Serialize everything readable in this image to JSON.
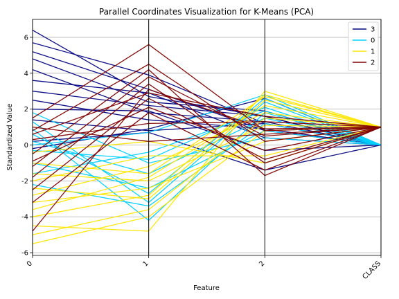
{
  "chart_data": {
    "type": "line",
    "title": "Parallel Coordinates Visualization for K-Means (PCA)",
    "xlabel": "Feature",
    "ylabel": "Standardized Value",
    "categories": [
      "0",
      "1",
      "2",
      "CLASS"
    ],
    "ylim": [
      -6.15,
      7.0
    ],
    "yticks": [
      -6,
      -4,
      -2,
      0,
      2,
      4,
      6
    ],
    "grid": "horizontal",
    "legend_position": "top-right",
    "series": [
      {
        "name": "3",
        "color": "#000080",
        "lines": [
          [
            6.4,
            2.7,
            1.6,
            0.0
          ],
          [
            5.7,
            3.9,
            1.2,
            0.0
          ],
          [
            5.2,
            3.1,
            0.8,
            0.0
          ],
          [
            4.8,
            2.4,
            1.9,
            0.0
          ],
          [
            4.2,
            1.8,
            1.3,
            0.0
          ],
          [
            3.6,
            2.9,
            0.4,
            0.0
          ],
          [
            3.0,
            2.2,
            1.6,
            0.0
          ],
          [
            2.5,
            1.4,
            0.9,
            0.0
          ],
          [
            2.0,
            1.9,
            -0.3,
            0.0
          ],
          [
            1.4,
            0.8,
            1.2,
            0.0
          ],
          [
            0.2,
            0.7,
            -1.4,
            0.0
          ],
          [
            -0.2,
            0.9,
            2.6,
            0.0
          ]
        ]
      },
      {
        "name": "0",
        "color": "#00d0ff",
        "lines": [
          [
            1.3,
            -3.2,
            2.4,
            0.0
          ],
          [
            0.9,
            -4.2,
            1.8,
            0.0
          ],
          [
            0.6,
            -2.7,
            2.6,
            0.0
          ],
          [
            0.2,
            -1.6,
            1.5,
            0.0
          ],
          [
            -0.3,
            -0.8,
            2.1,
            0.0
          ],
          [
            -1.0,
            -2.4,
            0.8,
            0.0
          ],
          [
            -1.6,
            -0.4,
            1.9,
            0.0
          ],
          [
            -2.2,
            -3.4,
            1.2,
            0.0
          ],
          [
            1.8,
            -1.0,
            0.4,
            0.0
          ],
          [
            0.0,
            0.7,
            2.8,
            0.0
          ]
        ]
      },
      {
        "name": "1",
        "color": "#ffe600",
        "lines": [
          [
            -5.5,
            -4.0,
            0.8,
            1.0
          ],
          [
            -5.0,
            -3.6,
            1.5,
            1.0
          ],
          [
            -4.5,
            -4.8,
            3.0,
            1.0
          ],
          [
            -4.0,
            -2.8,
            2.8,
            1.0
          ],
          [
            -3.6,
            -1.8,
            2.2,
            1.0
          ],
          [
            -3.2,
            -2.4,
            0.2,
            1.0
          ],
          [
            -2.8,
            -1.2,
            1.8,
            1.0
          ],
          [
            -2.4,
            -3.0,
            2.5,
            1.0
          ],
          [
            -2.0,
            -0.6,
            -0.6,
            1.0
          ],
          [
            -1.6,
            -2.0,
            1.1,
            1.0
          ],
          [
            -1.0,
            -1.6,
            2.7,
            1.0
          ],
          [
            -0.4,
            0.2,
            -1.0,
            1.0
          ]
        ]
      },
      {
        "name": "2",
        "color": "#800000",
        "lines": [
          [
            1.5,
            5.6,
            0.8,
            1.0
          ],
          [
            0.8,
            4.5,
            0.2,
            1.0
          ],
          [
            -0.5,
            4.2,
            -1.7,
            1.0
          ],
          [
            -1.2,
            3.8,
            0.5,
            1.0
          ],
          [
            -2.5,
            2.6,
            -0.8,
            1.0
          ],
          [
            -3.2,
            1.8,
            -1.4,
            1.0
          ],
          [
            -4.8,
            3.1,
            0.9,
            1.0
          ],
          [
            0.3,
            1.2,
            1.3,
            1.0
          ],
          [
            -0.9,
            2.1,
            -0.3,
            1.0
          ],
          [
            1.0,
            0.2,
            0.6,
            1.0
          ],
          [
            -1.8,
            3.4,
            -1.0,
            1.0
          ],
          [
            0.6,
            2.9,
            1.6,
            1.0
          ]
        ]
      }
    ]
  }
}
